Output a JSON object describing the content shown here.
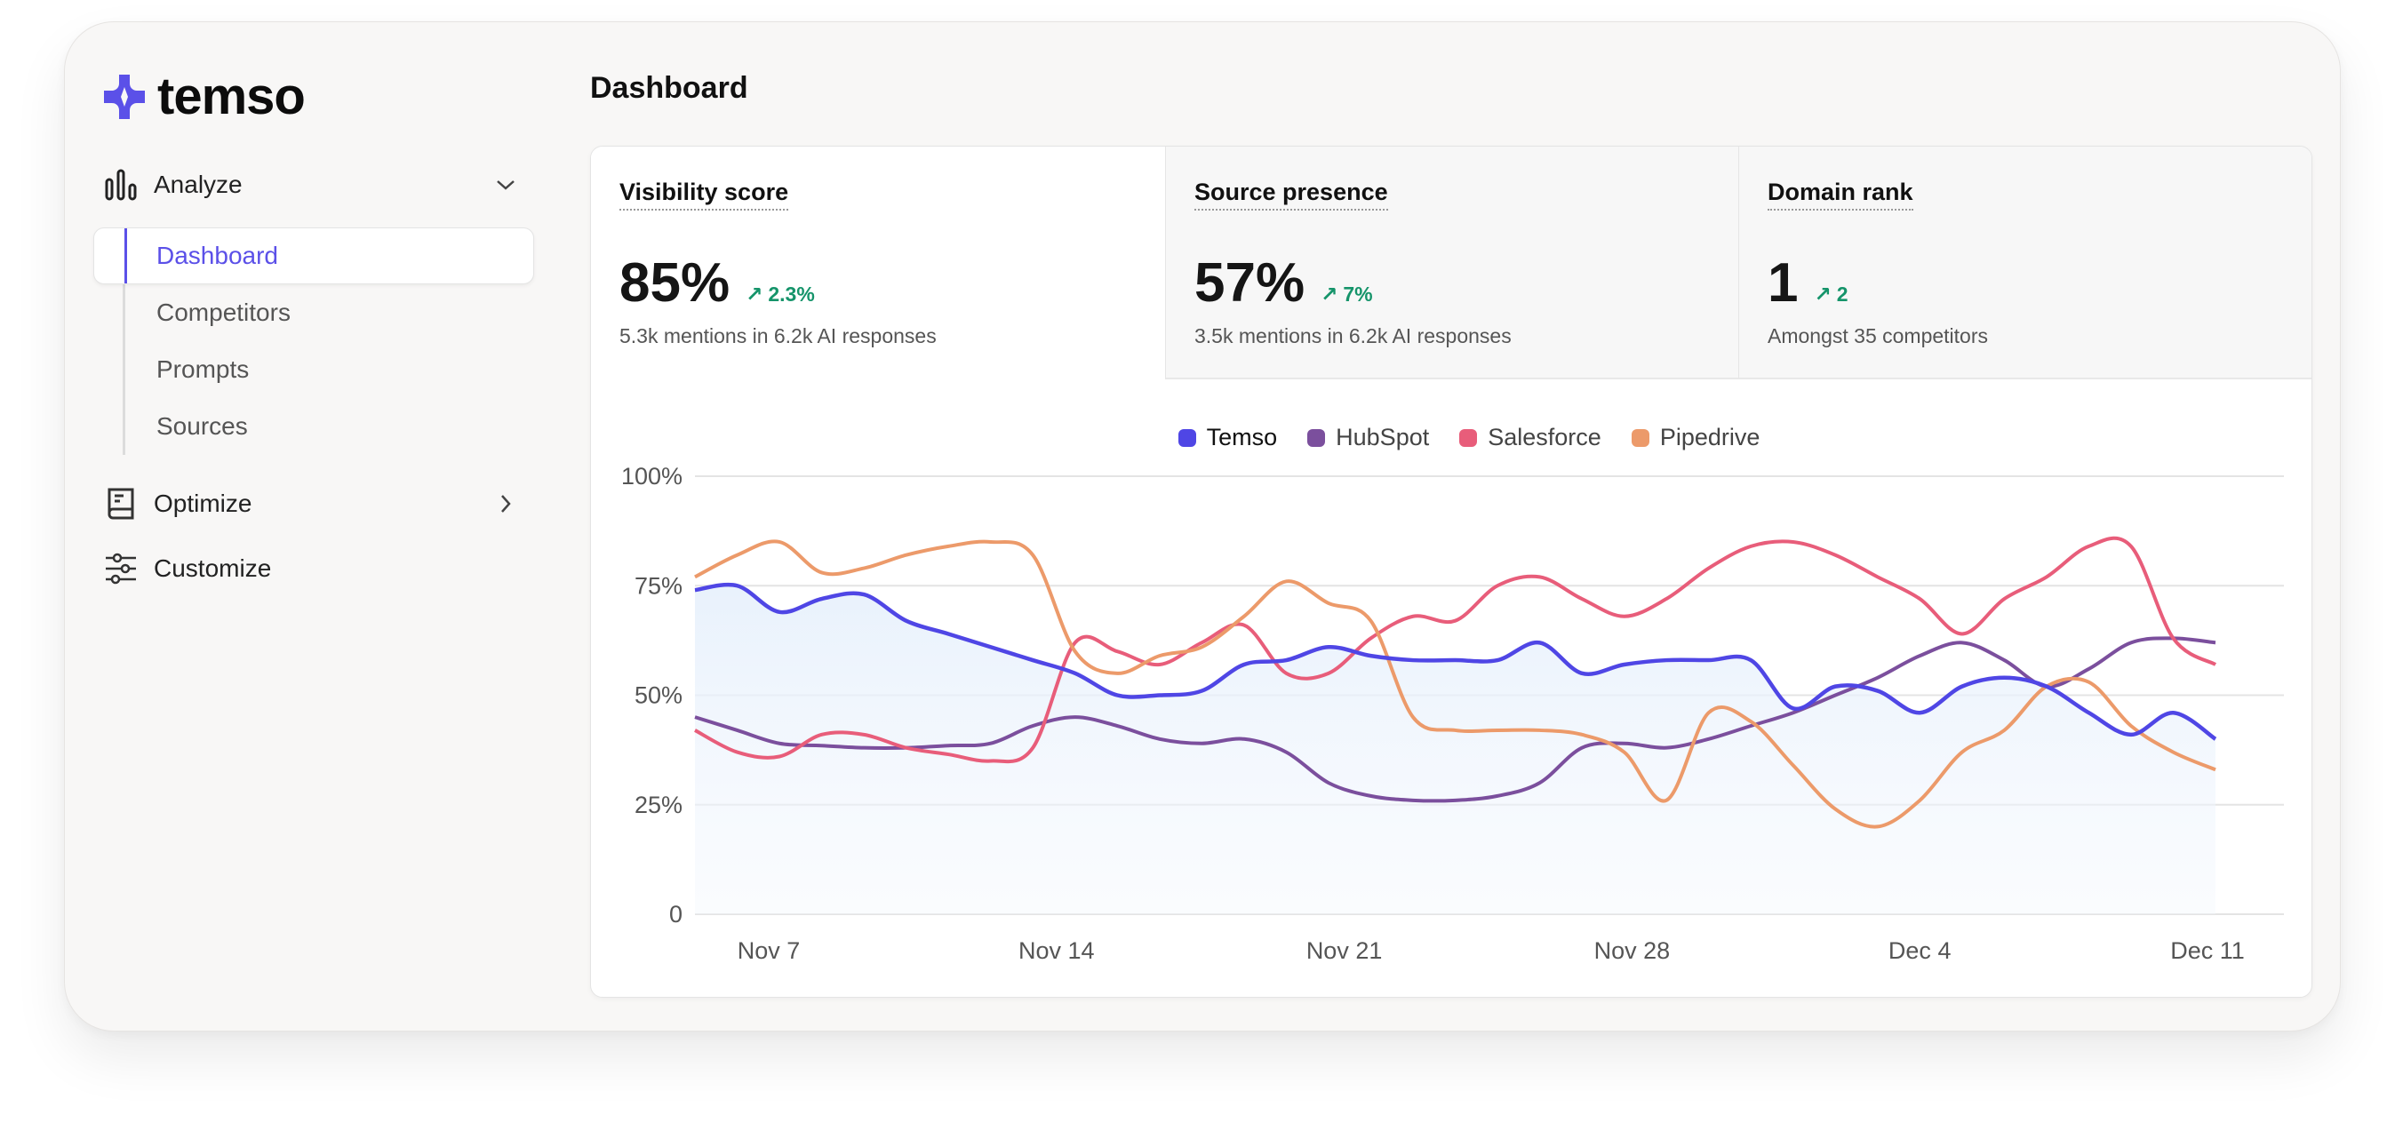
{
  "brand": {
    "name": "temso",
    "color": "#5b50e8"
  },
  "sidebar": {
    "groups": [
      {
        "label": "Analyze",
        "icon": "bar-chart-icon",
        "expanded": true,
        "items": [
          {
            "label": "Dashboard",
            "selected": true
          },
          {
            "label": "Competitors"
          },
          {
            "label": "Prompts"
          },
          {
            "label": "Sources"
          }
        ]
      },
      {
        "label": "Optimize",
        "icon": "book-icon",
        "expanded": false
      },
      {
        "label": "Customize",
        "icon": "sliders-icon"
      }
    ]
  },
  "page": {
    "title": "Dashboard"
  },
  "metrics": [
    {
      "title": "Visibility score",
      "value": "85%",
      "delta": "2.3%",
      "subtitle": "5.3k mentions in 6.2k AI responses",
      "active": true
    },
    {
      "title": "Source presence",
      "value": "57%",
      "delta": "7%",
      "subtitle": "3.5k mentions in 6.2k AI responses"
    },
    {
      "title": "Domain rank",
      "value": "1",
      "delta": "2",
      "subtitle": "Amongst 35 competitors"
    }
  ],
  "colors": {
    "positive": "#15946a"
  },
  "chart_data": {
    "type": "line",
    "x": [
      "Nov 5",
      "Nov 6",
      "Nov 7",
      "Nov 8",
      "Nov 9",
      "Nov 10",
      "Nov 11",
      "Nov 12",
      "Nov 13",
      "Nov 14",
      "Nov 15",
      "Nov 16",
      "Nov 17",
      "Nov 18",
      "Nov 19",
      "Nov 20",
      "Nov 21",
      "Nov 22",
      "Nov 23",
      "Nov 24",
      "Nov 25",
      "Nov 26",
      "Nov 27",
      "Nov 28",
      "Nov 29",
      "Nov 30",
      "Dec 1",
      "Dec 2",
      "Dec 3",
      "Dec 4",
      "Dec 5",
      "Dec 6",
      "Dec 7",
      "Dec 8",
      "Dec 9",
      "Dec 10",
      "Dec 11"
    ],
    "x_ticks": [
      "Nov 7",
      "Nov 14",
      "Nov 21",
      "Nov 28",
      "Dec 4",
      "Dec 11"
    ],
    "y_ticks": [
      "0",
      "25%",
      "50%",
      "75%",
      "100%"
    ],
    "ylim": [
      0,
      100
    ],
    "grid": true,
    "legend": "top-center",
    "series": [
      {
        "name": "Temso",
        "color": "#4f46e5",
        "filled": true,
        "values": [
          74,
          75,
          69,
          72,
          73,
          67,
          64,
          61,
          58,
          55,
          50,
          50,
          51,
          57,
          58,
          61,
          59,
          58,
          58,
          58,
          62,
          55,
          57,
          58,
          58,
          58,
          47,
          52,
          51,
          46,
          52,
          54,
          52,
          46,
          41,
          46,
          40
        ]
      },
      {
        "name": "HubSpot",
        "color": "#7b4f9d",
        "values": [
          45,
          42,
          39,
          38.5,
          38,
          38,
          38.5,
          39,
          43,
          45,
          43,
          40,
          39,
          40,
          37,
          30,
          27,
          26,
          26,
          27,
          30,
          38,
          39,
          38,
          40,
          43,
          46,
          50,
          54,
          59,
          62,
          58,
          52,
          56,
          62,
          63,
          62
        ]
      },
      {
        "name": "Salesforce",
        "color": "#e85d7a",
        "values": [
          42,
          37,
          36,
          41,
          41,
          38,
          36.5,
          35,
          38,
          62,
          60,
          57,
          62,
          66,
          55,
          55,
          63,
          68,
          67,
          75,
          77,
          72,
          68,
          72,
          79,
          84,
          85,
          82,
          77,
          72,
          64,
          72,
          77,
          84,
          84,
          63,
          57
        ]
      },
      {
        "name": "Pipedrive",
        "color": "#ec9a6a",
        "values": [
          77,
          82,
          85,
          78,
          79,
          82,
          84,
          85,
          82,
          60,
          55,
          59,
          61,
          68,
          76,
          71,
          67,
          45,
          42,
          42,
          42,
          41,
          37,
          26,
          46,
          44,
          34,
          24,
          20,
          26,
          37,
          42,
          52,
          53,
          43,
          37,
          33
        ]
      }
    ]
  }
}
